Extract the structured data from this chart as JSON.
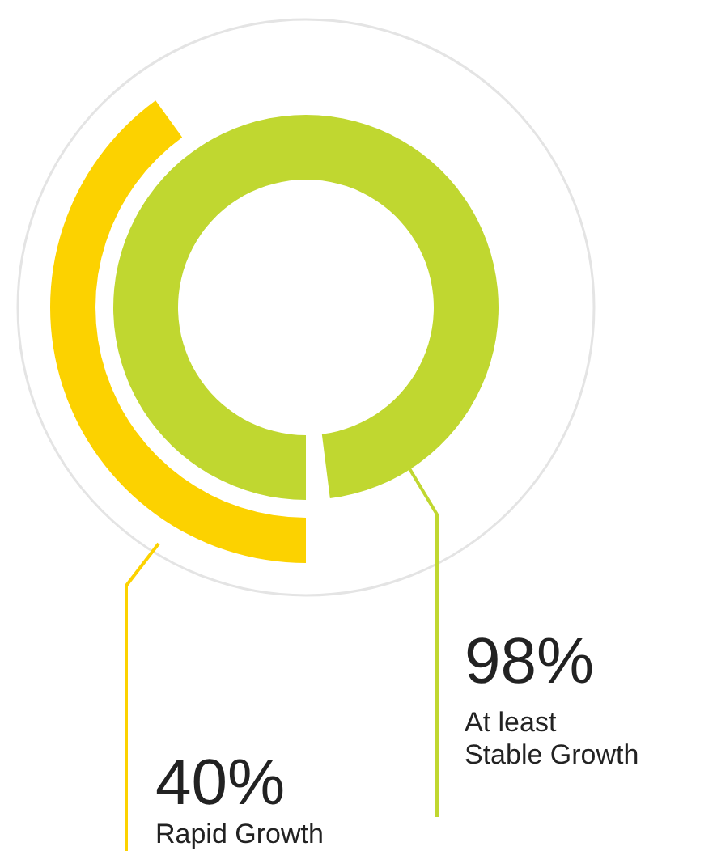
{
  "chart_data": {
    "type": "other",
    "categories": [
      "At least Stable Growth",
      "Rapid Growth"
    ],
    "values": [
      98,
      40
    ],
    "colors": [
      "#c0d730",
      "#fcd200"
    ],
    "value_labels": [
      "98%",
      "40%"
    ]
  }
}
